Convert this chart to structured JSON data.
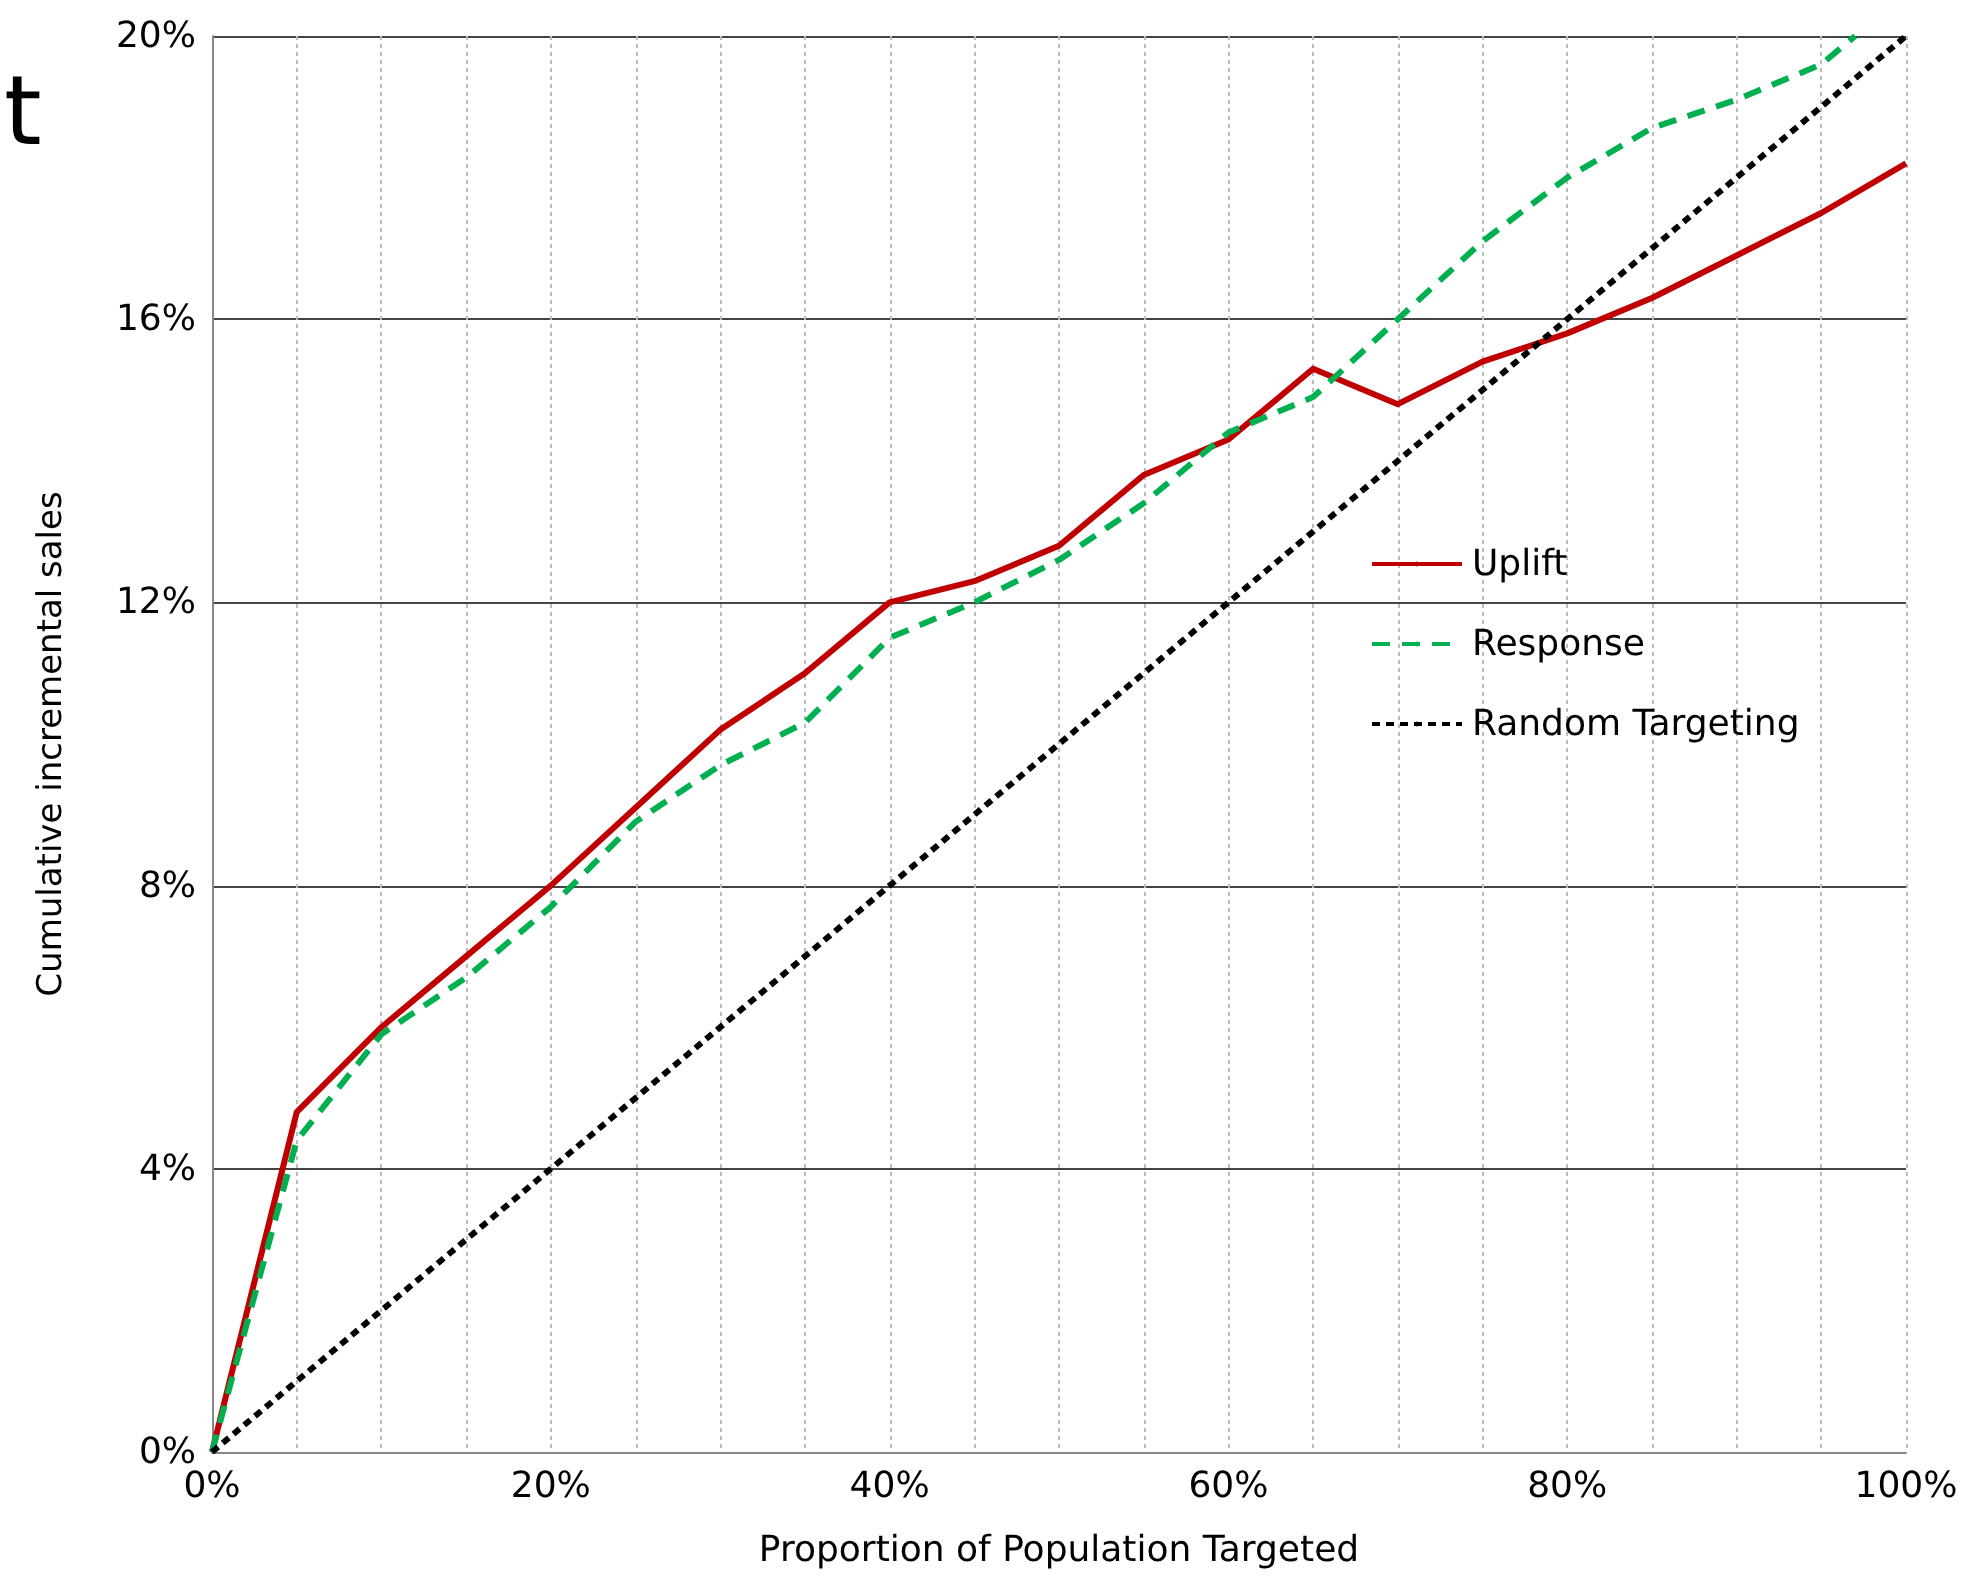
{
  "chart_data": {
    "type": "line",
    "xlabel": "Proportion of Population Targeted",
    "ylabel": "Cumulative incremental sales",
    "annotations": [
      "t"
    ],
    "series": [
      {
        "name": "Uplift",
        "color": "#c00000",
        "line_style": "solid",
        "x": [
          0,
          5,
          10,
          15,
          20,
          25,
          30,
          35,
          40,
          45,
          50,
          55,
          60,
          65,
          70,
          75,
          80,
          85,
          90,
          95,
          100
        ],
        "values": [
          0,
          4.8,
          6.0,
          7.0,
          8.0,
          9.1,
          10.2,
          11.0,
          12.0,
          12.3,
          12.8,
          13.8,
          14.3,
          15.3,
          14.8,
          15.4,
          15.8,
          16.3,
          16.9,
          17.5,
          18.2
        ]
      },
      {
        "name": "Response",
        "color": "#00b050",
        "line_style": "dashed",
        "x": [
          0,
          5,
          10,
          15,
          20,
          25,
          30,
          35,
          40,
          45,
          50,
          55,
          60,
          65,
          70,
          75,
          80,
          85,
          90,
          95,
          97
        ],
        "values": [
          0,
          4.4,
          5.9,
          6.7,
          7.7,
          8.9,
          9.7,
          10.3,
          11.5,
          12.0,
          12.6,
          13.4,
          14.4,
          14.9,
          16.0,
          17.1,
          18.0,
          18.7,
          19.1,
          19.6,
          20.0
        ]
      },
      {
        "name": "Random Targeting",
        "color": "#000000",
        "line_style": "dotted",
        "x": [
          0,
          100
        ],
        "values": [
          0,
          20
        ]
      }
    ],
    "xlim": [
      0,
      100
    ],
    "xticks": [
      {
        "value": 0,
        "label": "0%"
      },
      {
        "value": 5,
        "label": null
      },
      {
        "value": 10,
        "label": null
      },
      {
        "value": 15,
        "label": null
      },
      {
        "value": 20,
        "label": "20%"
      },
      {
        "value": 25,
        "label": null
      },
      {
        "value": 30,
        "label": null
      },
      {
        "value": 35,
        "label": null
      },
      {
        "value": 40,
        "label": "40%"
      },
      {
        "value": 45,
        "label": null
      },
      {
        "value": 50,
        "label": null
      },
      {
        "value": 55,
        "label": null
      },
      {
        "value": 60,
        "label": "60%"
      },
      {
        "value": 65,
        "label": null
      },
      {
        "value": 70,
        "label": null
      },
      {
        "value": 75,
        "label": null
      },
      {
        "value": 80,
        "label": "80%"
      },
      {
        "value": 85,
        "label": null
      },
      {
        "value": 90,
        "label": null
      },
      {
        "value": 95,
        "label": null
      },
      {
        "value": 100,
        "label": "100%"
      }
    ],
    "ylim": [
      0,
      20
    ],
    "yticks": [
      {
        "value": 0,
        "label": "0%"
      },
      {
        "value": 4,
        "label": "4%"
      },
      {
        "value": 8,
        "label": "8%"
      },
      {
        "value": 12,
        "label": "12%"
      },
      {
        "value": 16,
        "label": "16%"
      },
      {
        "value": 20,
        "label": "20%"
      }
    ],
    "grid": true,
    "legend": "right",
    "marker": "none"
  }
}
